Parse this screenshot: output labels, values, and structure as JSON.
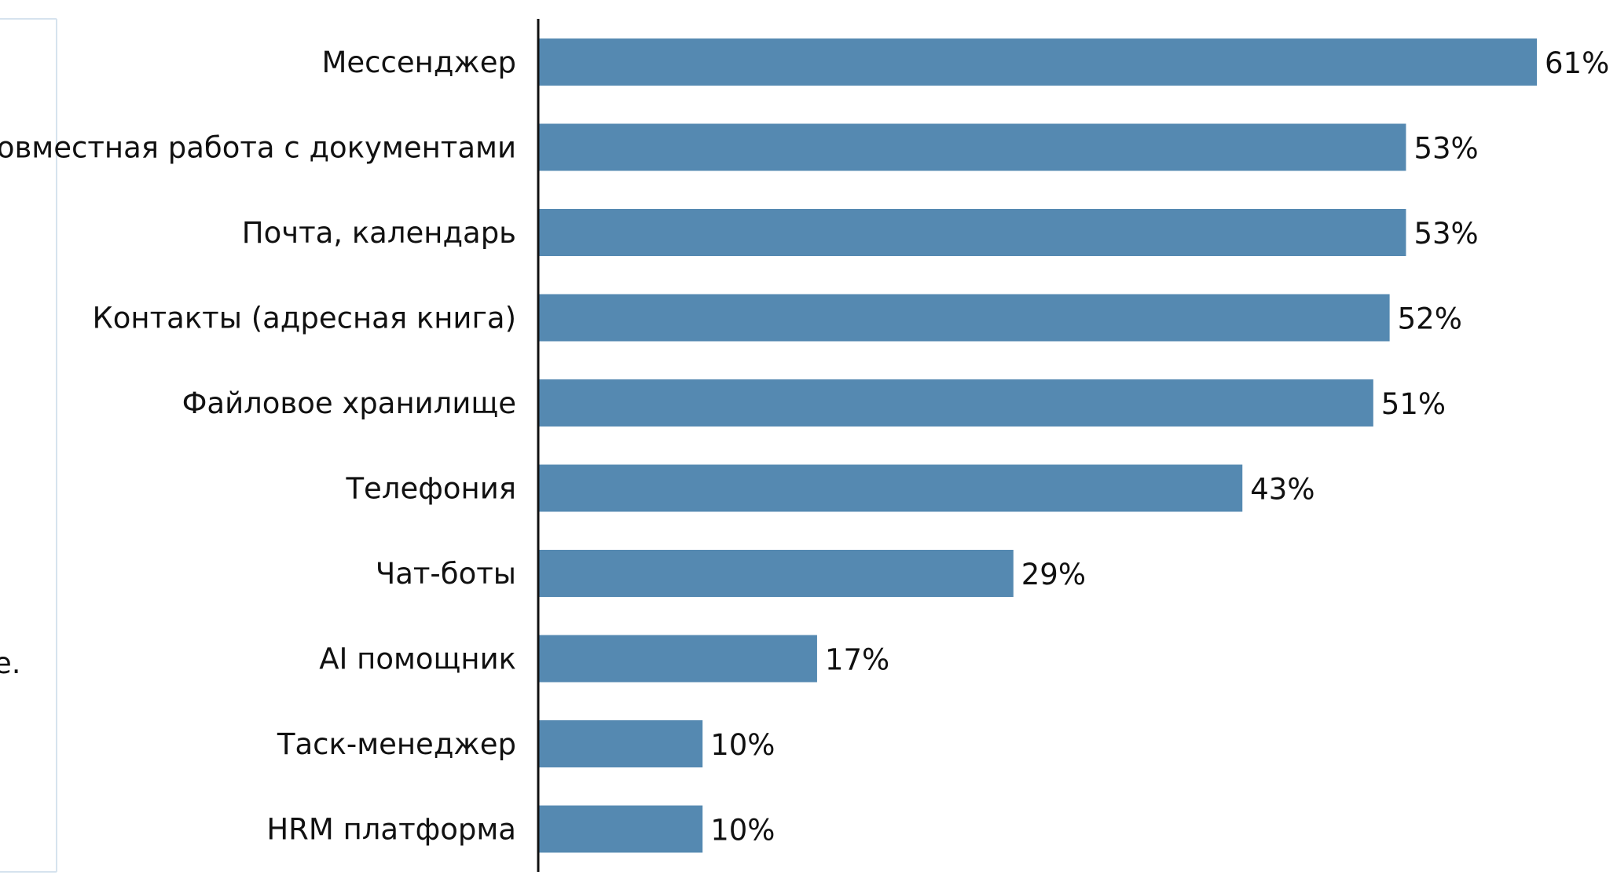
{
  "edge_fragment": "е.",
  "chart_data": {
    "type": "bar",
    "orientation": "horizontal",
    "categories": [
      "Мессенджер",
      "Совместная работа с документами",
      "Почта, календарь",
      "Контакты (адресная книга)",
      "Файловое хранилище",
      "Телефония",
      "Чат-боты",
      "AI помощник",
      "Таск-менеджер",
      "HRM платформа"
    ],
    "values": [
      61,
      53,
      53,
      52,
      51,
      43,
      29,
      17,
      10,
      10
    ],
    "value_labels": [
      "61%",
      "53%",
      "53%",
      "52%",
      "51%",
      "43%",
      "29%",
      "17%",
      "10%",
      "10%"
    ],
    "bar_color": "#5589b1",
    "title": "",
    "xlabel": "",
    "ylabel": "",
    "xlim": [
      0,
      61
    ],
    "grid": false,
    "legend": "none"
  }
}
